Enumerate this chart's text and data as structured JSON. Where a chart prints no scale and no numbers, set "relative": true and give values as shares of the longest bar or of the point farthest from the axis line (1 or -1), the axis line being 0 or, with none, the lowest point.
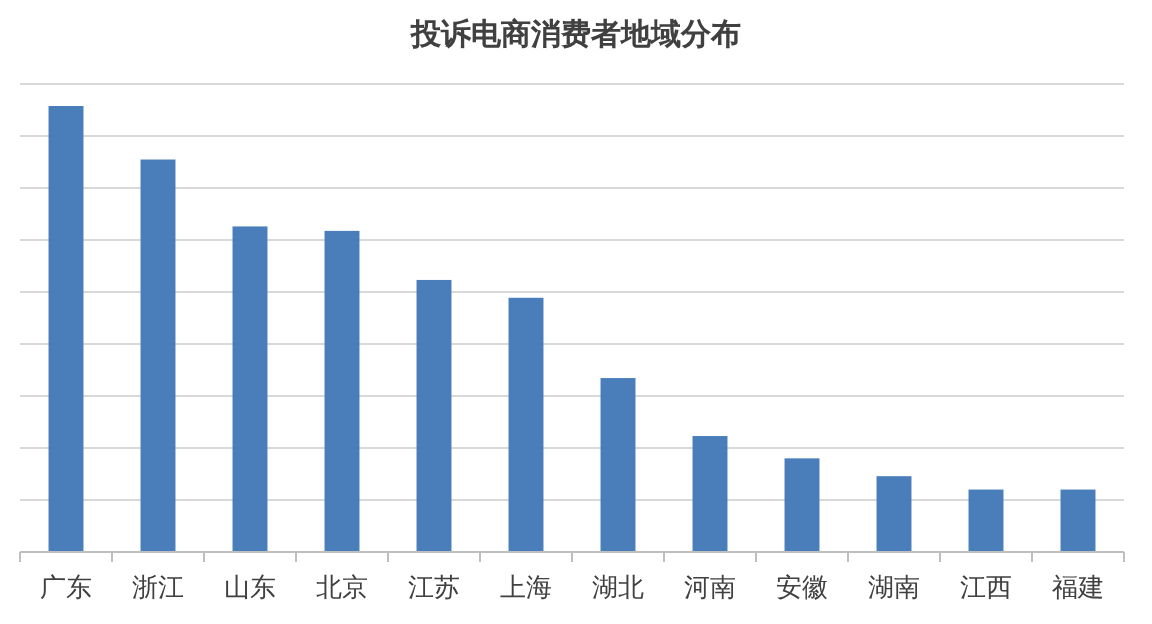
{
  "chart_data": {
    "type": "bar",
    "title": "投诉电商消费者地域分布",
    "relative": true,
    "grid": true,
    "color": "#4a7ebb",
    "categories": [
      "广东",
      "浙江",
      "山东",
      "北京",
      "江苏",
      "上海",
      "湖北",
      "河南",
      "安徽",
      "湖南",
      "江西",
      "福建"
    ],
    "values": [
      1,
      0.88,
      0.73,
      0.72,
      0.61,
      0.57,
      0.39,
      0.26,
      0.21,
      0.17,
      0.14,
      0.14
    ]
  }
}
